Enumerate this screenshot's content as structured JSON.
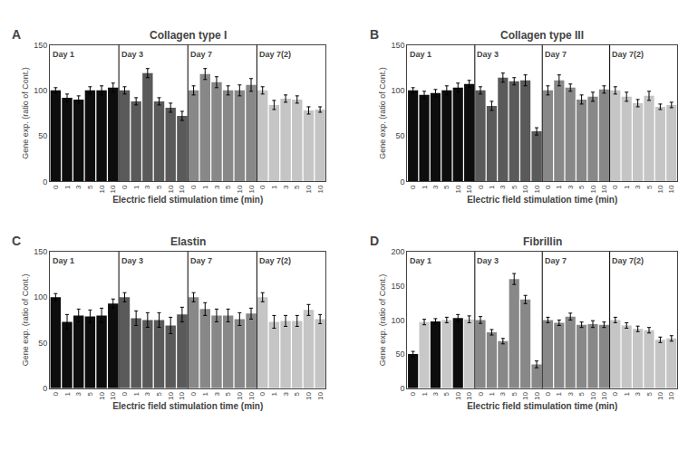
{
  "chart_data": [
    {
      "type": "bar",
      "title": "Collagen type I",
      "x_label": "Electric field stimulation time (min)",
      "y_label": "Gene exp. (ratio of Cont.)",
      "categories": [
        "0",
        "1",
        "3",
        "5",
        "10",
        "10",
        "0",
        "1",
        "3",
        "5",
        "10",
        "10",
        "0",
        "1",
        "3",
        "5",
        "10",
        "10",
        "0",
        "1",
        "3",
        "5",
        "10",
        "10"
      ],
      "values": [
        100,
        92,
        90,
        100,
        100,
        103,
        100,
        88,
        119,
        88,
        81,
        72,
        100,
        118,
        109,
        100,
        100,
        106,
        100,
        84,
        91,
        90,
        78,
        79
      ],
      "errors": [
        3,
        4,
        4,
        4,
        5,
        5,
        4,
        4,
        5,
        4,
        5,
        5,
        5,
        6,
        6,
        5,
        6,
        7,
        4,
        5,
        4,
        4,
        4,
        3
      ],
      "colors": [
        "#0d0d0d",
        "#0d0d0d",
        "#0d0d0d",
        "#0d0d0d",
        "#0d0d0d",
        "#0d0d0d",
        "#5a5a5a",
        "#5a5a5a",
        "#5a5a5a",
        "#5a5a5a",
        "#5a5a5a",
        "#5a5a5a",
        "#888888",
        "#888888",
        "#888888",
        "#888888",
        "#888888",
        "#888888",
        "#c5c5c5",
        "#c5c5c5",
        "#c5c5c5",
        "#c5c5c5",
        "#c5c5c5",
        "#c5c5c5"
      ],
      "annotations": [
        {
          "text": "A"
        },
        {
          "text": "Day 1",
          "x": 0
        },
        {
          "text": "Day 3",
          "x": 6
        },
        {
          "text": "Day 7",
          "x": 12
        },
        {
          "text": "Day 7(2)",
          "x": 18
        }
      ],
      "ylim": [
        0,
        150
      ],
      "yticks": [
        0,
        50,
        100,
        150
      ],
      "grid": false,
      "legend": false
    },
    {
      "type": "bar",
      "title": "Collagen type III",
      "x_label": "Electric field stimulation time (min)",
      "y_label": "Gene exp. (ratio of Cont.)",
      "categories": [
        "0",
        "1",
        "3",
        "5",
        "10",
        "10",
        "0",
        "1",
        "3",
        "5",
        "10",
        "10",
        "0",
        "1",
        "3",
        "5",
        "10",
        "10",
        "0",
        "1",
        "3",
        "5",
        "10",
        "10"
      ],
      "values": [
        100,
        95,
        97,
        100,
        103,
        107,
        100,
        83,
        114,
        110,
        111,
        55,
        100,
        111,
        103,
        90,
        93,
        101,
        100,
        93,
        86,
        94,
        82,
        84
      ],
      "errors": [
        3,
        4,
        4,
        5,
        5,
        4,
        4,
        5,
        5,
        4,
        6,
        4,
        5,
        6,
        4,
        5,
        5,
        4,
        4,
        5,
        4,
        5,
        3,
        3
      ],
      "colors": [
        "#0d0d0d",
        "#0d0d0d",
        "#0d0d0d",
        "#0d0d0d",
        "#0d0d0d",
        "#0d0d0d",
        "#5a5a5a",
        "#5a5a5a",
        "#5a5a5a",
        "#5a5a5a",
        "#5a5a5a",
        "#5a5a5a",
        "#888888",
        "#888888",
        "#888888",
        "#888888",
        "#888888",
        "#888888",
        "#c5c5c5",
        "#c5c5c5",
        "#c5c5c5",
        "#c5c5c5",
        "#c5c5c5",
        "#c5c5c5"
      ],
      "annotations": [
        {
          "text": "B"
        },
        {
          "text": "Day 1",
          "x": 0
        },
        {
          "text": "Day 3",
          "x": 6
        },
        {
          "text": "Day 7",
          "x": 12
        },
        {
          "text": "Day 7(2)",
          "x": 18
        }
      ],
      "ylim": [
        0,
        150
      ],
      "yticks": [
        0,
        50,
        100,
        150
      ],
      "grid": false,
      "legend": false
    },
    {
      "type": "bar",
      "title": "Elastin",
      "x_label": "Electric field stimulation time (min)",
      "y_label": "Gene exp. (ratio of Cont.)",
      "categories": [
        "0",
        "1",
        "3",
        "5",
        "10",
        "10",
        "0",
        "1",
        "3",
        "5",
        "10",
        "10",
        "0",
        "1",
        "3",
        "5",
        "10",
        "10",
        "0",
        "1",
        "3",
        "5",
        "10",
        "10"
      ],
      "values": [
        100,
        73,
        80,
        79,
        80,
        93,
        100,
        77,
        75,
        75,
        69,
        81,
        100,
        87,
        80,
        80,
        76,
        82,
        100,
        73,
        74,
        74,
        86,
        76
      ],
      "errors": [
        4,
        8,
        7,
        7,
        8,
        5,
        5,
        8,
        8,
        8,
        9,
        8,
        5,
        7,
        7,
        7,
        7,
        6,
        5,
        7,
        6,
        6,
        6,
        5
      ],
      "colors": [
        "#0d0d0d",
        "#0d0d0d",
        "#0d0d0d",
        "#0d0d0d",
        "#0d0d0d",
        "#0d0d0d",
        "#5a5a5a",
        "#5a5a5a",
        "#5a5a5a",
        "#5a5a5a",
        "#5a5a5a",
        "#5a5a5a",
        "#888888",
        "#888888",
        "#888888",
        "#888888",
        "#888888",
        "#888888",
        "#c5c5c5",
        "#c5c5c5",
        "#c5c5c5",
        "#c5c5c5",
        "#c5c5c5",
        "#c5c5c5"
      ],
      "annotations": [
        {
          "text": "C"
        },
        {
          "text": "Day 1",
          "x": 0
        },
        {
          "text": "Day 3",
          "x": 6
        },
        {
          "text": "Day 7",
          "x": 12
        },
        {
          "text": "Day 7(2)",
          "x": 18
        }
      ],
      "ylim": [
        0,
        150
      ],
      "yticks": [
        0,
        50,
        100,
        150
      ],
      "grid": false,
      "legend": false
    },
    {
      "type": "bar",
      "title": "Fibrillin",
      "x_label": "Electric field stimulation time (min)",
      "y_label": "Gene exp. (ratio of Cont.)",
      "categories": [
        "0",
        "1",
        "3",
        "5",
        "10",
        "10",
        "0",
        "1",
        "3",
        "5",
        "10",
        "10",
        "0",
        "1",
        "3",
        "5",
        "10",
        "10",
        "0",
        "1",
        "3",
        "5",
        "10",
        "10"
      ],
      "values": [
        50,
        97,
        98,
        100,
        103,
        101,
        100,
        82,
        69,
        160,
        130,
        35,
        100,
        96,
        105,
        93,
        94,
        93,
        100,
        92,
        87,
        85,
        71,
        73
      ],
      "errors": [
        4,
        4,
        4,
        4,
        5,
        5,
        5,
        4,
        4,
        8,
        6,
        5,
        4,
        4,
        5,
        4,
        5,
        4,
        4,
        4,
        4,
        4,
        4,
        4
      ],
      "colors": [
        "#0d0d0d",
        "#c8c8c8",
        "#0d0d0d",
        "#c8c8c8",
        "#0d0d0d",
        "#c8c8c8",
        "#888888",
        "#888888",
        "#888888",
        "#888888",
        "#888888",
        "#888888",
        "#888888",
        "#888888",
        "#888888",
        "#888888",
        "#888888",
        "#888888",
        "#c5c5c5",
        "#c5c5c5",
        "#c5c5c5",
        "#c5c5c5",
        "#c5c5c5",
        "#c5c5c5"
      ],
      "annotations": [
        {
          "text": "D"
        },
        {
          "text": "Day 1",
          "x": 0
        },
        {
          "text": "Day 3",
          "x": 6
        },
        {
          "text": "Day 7",
          "x": 12
        },
        {
          "text": "Day 7(2)",
          "x": 18
        }
      ],
      "ylim": [
        0,
        200
      ],
      "yticks": [
        0,
        50,
        100,
        150,
        200
      ],
      "grid": false,
      "legend": false
    }
  ]
}
